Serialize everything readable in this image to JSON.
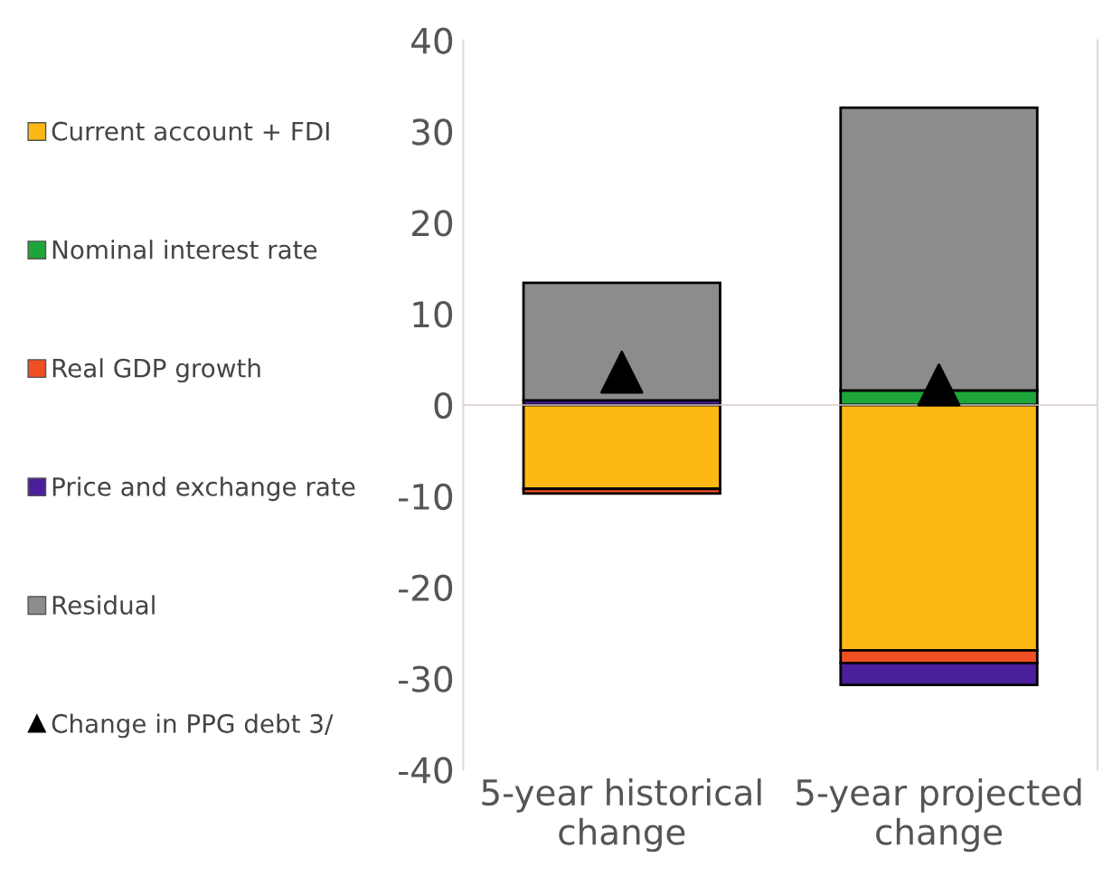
{
  "chart_data": {
    "type": "bar",
    "stacked": true,
    "categories": [
      "5-year historical\nchange",
      "5-year projected\nchange"
    ],
    "series": [
      {
        "name": "Current account + FDI",
        "color": "#fdb813",
        "values": [
          -9.2,
          -26.9
        ]
      },
      {
        "name": "Nominal interest rate",
        "color": "#1ea53a",
        "values": [
          0,
          1.6
        ]
      },
      {
        "name": "Real GDP growth",
        "color": "#f04e23",
        "values": [
          -0.5,
          -1.4
        ]
      },
      {
        "name": "Price and exchange rate",
        "color": "#4a1f9c",
        "values": [
          0.5,
          -2.4
        ]
      },
      {
        "name": "Residual",
        "color": "#8c8c8c",
        "values": [
          12.9,
          31.0
        ]
      },
      {
        "name": "Change in PPG debt 3/",
        "type": "scatter",
        "marker": "triangle",
        "color": "#000000",
        "values": [
          3.6,
          2.2
        ]
      }
    ],
    "ylim": [
      -40,
      40
    ],
    "yticks": [
      -40,
      -30,
      -20,
      -10,
      0,
      10,
      20,
      30,
      40
    ],
    "grid": false,
    "legend": "left",
    "ref_lines": [
      {
        "axis": "y",
        "value": 0,
        "label": null,
        "color": "#d8c8cc"
      }
    ]
  }
}
